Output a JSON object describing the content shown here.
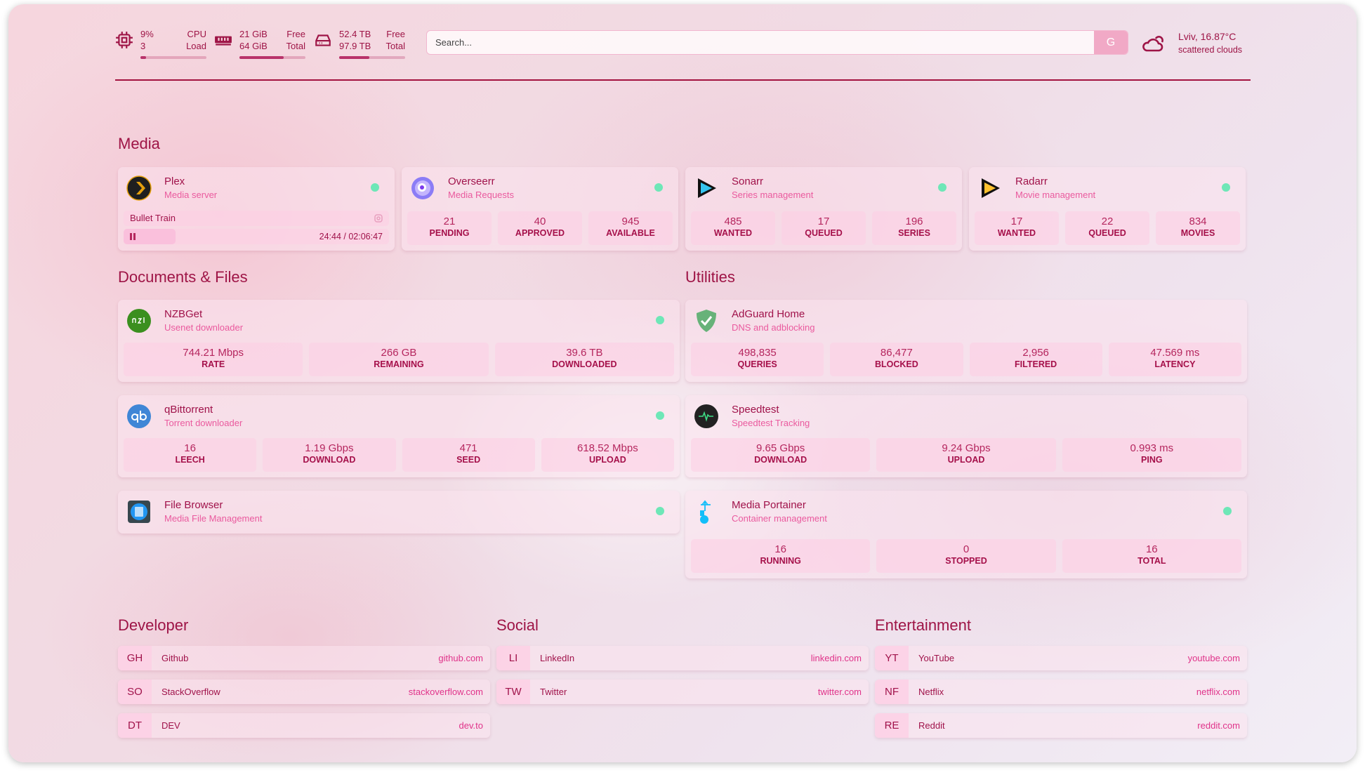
{
  "header": {
    "cpu": {
      "icon": "cpu-icon",
      "value": "9%",
      "sub": "3",
      "label1": "CPU",
      "label2": "Load",
      "percent": 9
    },
    "memory": {
      "icon": "memory-icon",
      "value": "21 GiB",
      "sub": "64 GiB",
      "label1": "Free",
      "label2": "Total",
      "percent": 67
    },
    "disk": {
      "icon": "disk-icon",
      "value": "52.4 TB",
      "sub": "97.9 TB",
      "label1": "Free",
      "label2": "Total",
      "percent": 46
    },
    "search": {
      "placeholder": "Search...",
      "button": "G"
    },
    "weather": {
      "icon": "cloud-sun-icon",
      "location": "Lviv, 16.87°C",
      "condition": "scattered clouds"
    }
  },
  "colors": {
    "accent": "#9e1446",
    "status_ok": "#6ee7b7",
    "tile": "#fdcde4"
  },
  "sections": [
    {
      "title": "Media"
    },
    {
      "title": "Documents & Files"
    },
    {
      "title": "Utilities"
    }
  ],
  "media": [
    {
      "name": "Plex",
      "desc": "Media server",
      "icon": "plex-icon",
      "status": true,
      "now_playing": {
        "title": "Bullet Train",
        "time": "24:44 / 02:06:47",
        "progress": 19.5
      }
    },
    {
      "name": "Overseerr",
      "desc": "Media Requests",
      "icon": "overseerr-icon",
      "status": true,
      "tiles": [
        {
          "v": "21",
          "l": "PENDING"
        },
        {
          "v": "40",
          "l": "APPROVED"
        },
        {
          "v": "945",
          "l": "AVAILABLE"
        }
      ]
    },
    {
      "name": "Sonarr",
      "desc": "Series management",
      "icon": "sonarr-icon",
      "status": true,
      "tiles": [
        {
          "v": "485",
          "l": "WANTED"
        },
        {
          "v": "17",
          "l": "QUEUED"
        },
        {
          "v": "196",
          "l": "SERIES"
        }
      ]
    },
    {
      "name": "Radarr",
      "desc": "Movie management",
      "icon": "radarr-icon",
      "status": true,
      "tiles": [
        {
          "v": "17",
          "l": "WANTED"
        },
        {
          "v": "22",
          "l": "QUEUED"
        },
        {
          "v": "834",
          "l": "MOVIES"
        }
      ]
    }
  ],
  "documents": [
    {
      "name": "NZBGet",
      "desc": "Usenet downloader",
      "icon": "nzbget-icon",
      "status": true,
      "tiles": [
        {
          "v": "744.21 Mbps",
          "l": "RATE"
        },
        {
          "v": "266 GB",
          "l": "REMAINING"
        },
        {
          "v": "39.6 TB",
          "l": "DOWNLOADED"
        }
      ]
    },
    {
      "name": "qBittorrent",
      "desc": "Torrent downloader",
      "icon": "qbittorrent-icon",
      "status": true,
      "tiles": [
        {
          "v": "16",
          "l": "LEECH"
        },
        {
          "v": "1.19 Gbps",
          "l": "DOWNLOAD"
        },
        {
          "v": "471",
          "l": "SEED"
        },
        {
          "v": "618.52 Mbps",
          "l": "UPLOAD"
        }
      ]
    },
    {
      "name": "File Browser",
      "desc": "Media File Management",
      "icon": "filebrowser-icon",
      "status": true
    }
  ],
  "utilities": [
    {
      "name": "AdGuard Home",
      "desc": "DNS and adblocking",
      "icon": "adguard-icon",
      "status": false,
      "tiles": [
        {
          "v": "498,835",
          "l": "QUERIES"
        },
        {
          "v": "86,477",
          "l": "BLOCKED"
        },
        {
          "v": "2,956",
          "l": "FILTERED"
        },
        {
          "v": "47.569 ms",
          "l": "LATENCY"
        }
      ]
    },
    {
      "name": "Speedtest",
      "desc": "Speedtest Tracking",
      "icon": "speedtest-icon",
      "status": false,
      "tiles": [
        {
          "v": "9.65 Gbps",
          "l": "DOWNLOAD"
        },
        {
          "v": "9.24 Gbps",
          "l": "UPLOAD"
        },
        {
          "v": "0.993 ms",
          "l": "PING"
        }
      ]
    },
    {
      "name": "Media Portainer",
      "desc": "Container management",
      "icon": "portainer-icon",
      "status": true,
      "tiles": [
        {
          "v": "16",
          "l": "RUNNING"
        },
        {
          "v": "0",
          "l": "STOPPED"
        },
        {
          "v": "16",
          "l": "TOTAL"
        }
      ]
    }
  ],
  "bookmarks": [
    {
      "title": "Developer",
      "items": [
        {
          "abbr": "GH",
          "name": "Github",
          "url": "github.com"
        },
        {
          "abbr": "SO",
          "name": "StackOverflow",
          "url": "stackoverflow.com"
        },
        {
          "abbr": "DT",
          "name": "DEV",
          "url": "dev.to"
        }
      ]
    },
    {
      "title": "Social",
      "items": [
        {
          "abbr": "LI",
          "name": "LinkedIn",
          "url": "linkedin.com"
        },
        {
          "abbr": "TW",
          "name": "Twitter",
          "url": "twitter.com"
        }
      ]
    },
    {
      "title": "Entertainment",
      "items": [
        {
          "abbr": "YT",
          "name": "YouTube",
          "url": "youtube.com"
        },
        {
          "abbr": "NF",
          "name": "Netflix",
          "url": "netflix.com"
        },
        {
          "abbr": "RE",
          "name": "Reddit",
          "url": "reddit.com"
        }
      ]
    }
  ]
}
